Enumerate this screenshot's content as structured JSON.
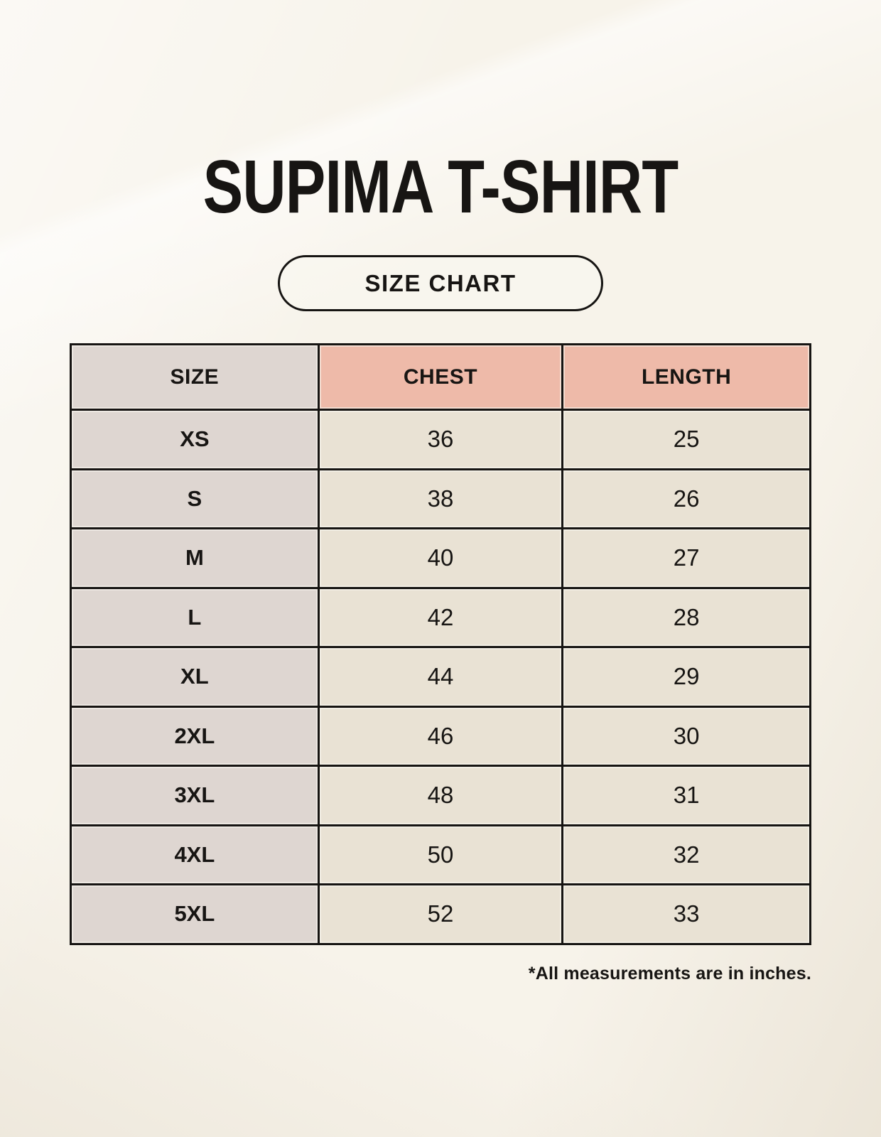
{
  "page": {
    "title": "SUPIMA T-SHIRT",
    "badge_label": "SIZE CHART",
    "footnote": "*All measurements are in inches."
  },
  "colors": {
    "background": "#f7f3ea",
    "size_column_bg": "#ded6d1",
    "accent_header_bg": "#eebaa9",
    "data_cell_bg": "#e9e2d4",
    "border": "#161412",
    "text": "#171513"
  },
  "chart_data": {
    "type": "table",
    "title": "SUPIMA T-SHIRT",
    "subtitle": "SIZE CHART",
    "units": "inches",
    "columns": [
      "SIZE",
      "CHEST",
      "LENGTH"
    ],
    "rows": [
      {
        "size": "XS",
        "chest": 36,
        "length": 25
      },
      {
        "size": "S",
        "chest": 38,
        "length": 26
      },
      {
        "size": "M",
        "chest": 40,
        "length": 27
      },
      {
        "size": "L",
        "chest": 42,
        "length": 28
      },
      {
        "size": "XL",
        "chest": 44,
        "length": 29
      },
      {
        "size": "2XL",
        "chest": 46,
        "length": 30
      },
      {
        "size": "3XL",
        "chest": 48,
        "length": 31
      },
      {
        "size": "4XL",
        "chest": 50,
        "length": 32
      },
      {
        "size": "5XL",
        "chest": 52,
        "length": 33
      }
    ],
    "footnote": "*All measurements are in inches."
  }
}
